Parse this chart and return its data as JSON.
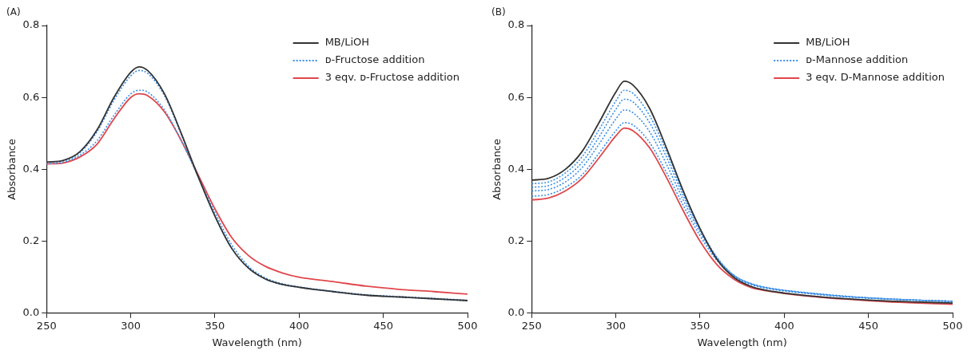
{
  "chart_data": [
    {
      "type": "line",
      "title": "(A)",
      "xlabel": "Wavelength (nm)",
      "ylabel": "Absorbance",
      "x": [
        250,
        260,
        270,
        280,
        290,
        300,
        305,
        310,
        320,
        330,
        340,
        350,
        360,
        370,
        380,
        390,
        400,
        420,
        440,
        460,
        480,
        500
      ],
      "xlim": [
        250,
        500
      ],
      "xticks": [
        250,
        300,
        350,
        400,
        450,
        500
      ],
      "ylim": [
        0,
        0.8
      ],
      "yticks": [
        {
          "value": 0,
          "label": "0.0"
        },
        {
          "value": 0.2,
          "label": "0.2"
        },
        {
          "value": 0.4,
          "label": "0.4"
        },
        {
          "value": 0.6,
          "label": "0.6"
        },
        {
          "value": 0.8,
          "label": "0.8"
        }
      ],
      "grid": false,
      "legend": "top right",
      "series": [
        {
          "name": "MB/LiOH",
          "color": "#333333",
          "line_style": "solid",
          "values": [
            0.42,
            0.425,
            0.45,
            0.51,
            0.6,
            0.67,
            0.685,
            0.675,
            0.61,
            0.5,
            0.38,
            0.27,
            0.18,
            0.125,
            0.095,
            0.08,
            0.072,
            0.06,
            0.05,
            0.045,
            0.04,
            0.035
          ]
        },
        {
          "name": "ᴅ-Fructose addition",
          "color": "#3a8ee6",
          "line_style": "dotted",
          "values": [
            0.42,
            0.424,
            0.447,
            0.505,
            0.592,
            0.66,
            0.675,
            0.667,
            0.605,
            0.497,
            0.38,
            0.27,
            0.18,
            0.125,
            0.095,
            0.08,
            0.072,
            0.06,
            0.05,
            0.045,
            0.04,
            0.035
          ]
        },
        {
          "color": "#3a8ee6",
          "line_style": "dotted",
          "values": [
            0.415,
            0.42,
            0.44,
            0.48,
            0.55,
            0.61,
            0.62,
            0.615,
            0.565,
            0.48,
            0.38,
            0.28,
            0.19,
            0.13,
            0.098,
            0.082,
            0.073,
            0.061,
            0.051,
            0.046,
            0.041,
            0.036
          ]
        },
        {
          "name": "3 eqv. ᴅ-Fructose addition",
          "color": "#e0474c",
          "line_style": "solid",
          "values": [
            0.415,
            0.418,
            0.435,
            0.47,
            0.54,
            0.6,
            0.61,
            0.605,
            0.56,
            0.48,
            0.385,
            0.29,
            0.21,
            0.16,
            0.13,
            0.112,
            0.1,
            0.088,
            0.075,
            0.066,
            0.06,
            0.053
          ]
        }
      ]
    },
    {
      "type": "line",
      "title": "(B)",
      "xlabel": "Wavelength (nm)",
      "ylabel": "Absorbance",
      "x": [
        250,
        260,
        270,
        280,
        290,
        300,
        305,
        310,
        320,
        330,
        340,
        350,
        360,
        370,
        380,
        390,
        400,
        420,
        440,
        460,
        480,
        500
      ],
      "xlim": [
        250,
        500
      ],
      "xticks": [
        250,
        300,
        350,
        400,
        450,
        500
      ],
      "ylim": [
        0,
        0.8
      ],
      "yticks": [
        {
          "value": 0,
          "label": "0.0"
        },
        {
          "value": 0.2,
          "label": "0.2"
        },
        {
          "value": 0.4,
          "label": "0.4"
        },
        {
          "value": 0.6,
          "label": "0.6"
        },
        {
          "value": 0.8,
          "label": "0.8"
        }
      ],
      "grid": false,
      "legend": "top right",
      "series": [
        {
          "name": "MB/LiOH",
          "color": "#333333",
          "line_style": "solid",
          "values": [
            0.37,
            0.375,
            0.4,
            0.45,
            0.53,
            0.615,
            0.645,
            0.635,
            0.57,
            0.46,
            0.34,
            0.235,
            0.15,
            0.1,
            0.075,
            0.063,
            0.056,
            0.046,
            0.039,
            0.034,
            0.031,
            0.028
          ]
        },
        {
          "name": "ᴅ-Mannose addition",
          "color": "#3a8ee6",
          "line_style": "dotted",
          "values": [
            0.36,
            0.365,
            0.39,
            0.435,
            0.51,
            0.59,
            0.62,
            0.612,
            0.55,
            0.45,
            0.335,
            0.235,
            0.155,
            0.105,
            0.082,
            0.07,
            0.063,
            0.053,
            0.045,
            0.04,
            0.036,
            0.033
          ]
        },
        {
          "color": "#3a8ee6",
          "line_style": "dotted",
          "values": [
            0.35,
            0.355,
            0.378,
            0.42,
            0.49,
            0.567,
            0.595,
            0.588,
            0.53,
            0.435,
            0.327,
            0.232,
            0.155,
            0.106,
            0.083,
            0.071,
            0.064,
            0.054,
            0.046,
            0.04,
            0.036,
            0.033
          ]
        },
        {
          "color": "#3a8ee6",
          "line_style": "dotted",
          "values": [
            0.34,
            0.344,
            0.365,
            0.405,
            0.47,
            0.54,
            0.565,
            0.558,
            0.505,
            0.415,
            0.315,
            0.225,
            0.152,
            0.105,
            0.082,
            0.07,
            0.063,
            0.053,
            0.045,
            0.04,
            0.036,
            0.033
          ]
        },
        {
          "color": "#3a8ee6",
          "line_style": "dotted",
          "values": [
            0.325,
            0.33,
            0.35,
            0.385,
            0.445,
            0.507,
            0.53,
            0.524,
            0.475,
            0.392,
            0.3,
            0.215,
            0.147,
            0.102,
            0.08,
            0.069,
            0.062,
            0.052,
            0.045,
            0.04,
            0.036,
            0.033
          ]
        },
        {
          "name": "3 eqv. D-Mannose addition",
          "color": "#e0474c",
          "line_style": "solid",
          "values": [
            0.315,
            0.32,
            0.34,
            0.375,
            0.432,
            0.493,
            0.515,
            0.508,
            0.46,
            0.378,
            0.285,
            0.2,
            0.135,
            0.095,
            0.072,
            0.062,
            0.055,
            0.045,
            0.038,
            0.032,
            0.028,
            0.025
          ]
        }
      ]
    }
  ]
}
